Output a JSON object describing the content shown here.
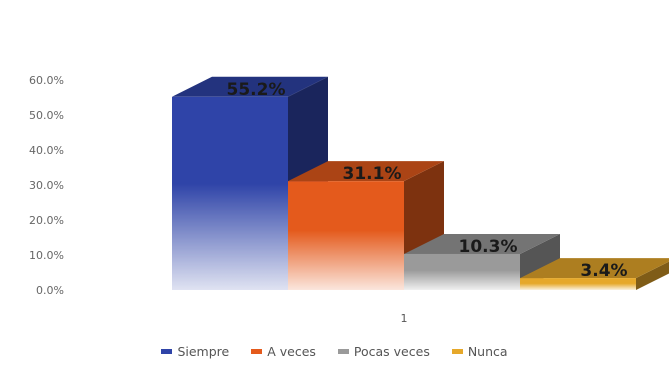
{
  "chart_data": {
    "type": "bar",
    "categories": [
      "1"
    ],
    "series": [
      {
        "name": "Siempre",
        "values": [
          55.2
        ],
        "label": "55.2%",
        "color": "#2f44a8"
      },
      {
        "name": "A veces",
        "values": [
          31.1
        ],
        "label": "31.1%",
        "color": "#e45a1c"
      },
      {
        "name": "Pocas veces",
        "values": [
          10.3
        ],
        "label": "10.3%",
        "color": "#9a9a9a"
      },
      {
        "name": "Nunca",
        "values": [
          3.4
        ],
        "label": "3.4%",
        "color": "#e6a82a"
      }
    ],
    "y_ticks": [
      "0.0%",
      "10.0%",
      "20.0%",
      "30.0%",
      "40.0%",
      "50.0%",
      "60.0%"
    ],
    "ylim": [
      0,
      60
    ],
    "grid": false,
    "legend_position": "bottom",
    "style": "3d"
  }
}
